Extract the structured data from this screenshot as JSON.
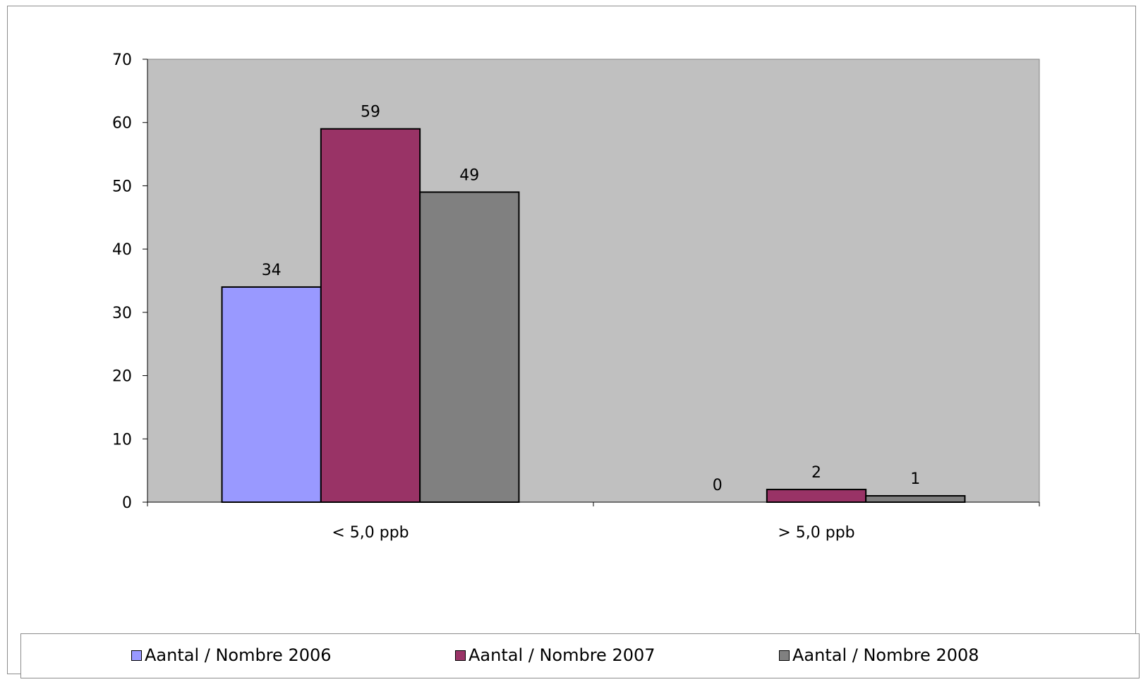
{
  "chart_data": {
    "type": "bar",
    "title": "",
    "xlabel": "",
    "ylabel": "",
    "categories": [
      "< 5,0 ppb",
      "> 5,0 ppb"
    ],
    "series": [
      {
        "name": "Aantal / Nombre 2006",
        "values": [
          34,
          0
        ],
        "color": "#9999ff"
      },
      {
        "name": "Aantal / Nombre 2007",
        "values": [
          59,
          2
        ],
        "color": "#993366"
      },
      {
        "name": "Aantal / Nombre 2008",
        "values": [
          49,
          1
        ],
        "color": "#808080"
      }
    ],
    "ylim": [
      0,
      70
    ],
    "yticks": [
      0,
      10,
      20,
      30,
      40,
      50,
      60,
      70
    ],
    "plot_background": "#c0c0c0",
    "grid": false,
    "data_labels": true,
    "legend_position": "bottom"
  }
}
